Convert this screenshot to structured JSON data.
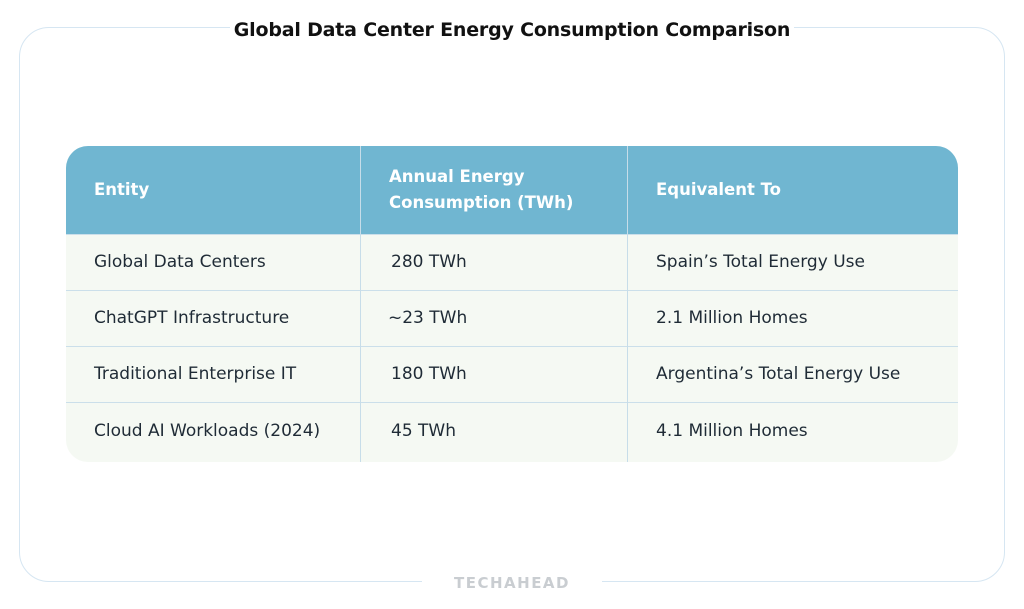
{
  "header": {
    "title": "Global Data Center Energy Consumption Comparison"
  },
  "table": {
    "columns": [
      "Entity",
      "Annual Energy Consumption (TWh)",
      "Equivalent To"
    ],
    "rows": [
      {
        "entity": "Global Data Centers",
        "consumption": "280 TWh",
        "equivalent": "Spain’s Total Energy Use"
      },
      {
        "entity": "ChatGPT Infrastructure",
        "consumption": "~23 TWh",
        "equivalent": "2.1 Million Homes"
      },
      {
        "entity": "Traditional Enterprise IT",
        "consumption": "180 TWh",
        "equivalent": "Argentina’s Total Energy Use"
      },
      {
        "entity": "Cloud AI Workloads (2024)",
        "consumption": "45 TWh",
        "equivalent": "4.1 Million Homes"
      }
    ]
  },
  "footer": {
    "brand": "TECHAHEAD"
  },
  "colors": {
    "header_bg": "#70b6d1",
    "row_bg": "#f5f9f3",
    "border": "#d6e6f2"
  }
}
